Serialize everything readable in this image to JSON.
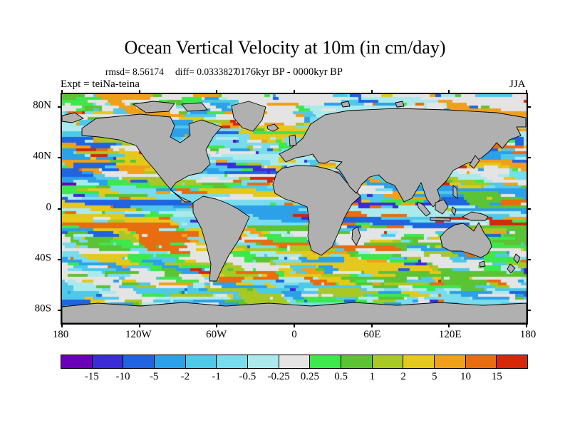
{
  "title": "Ocean Vertical Velocity at 10m (in cm/day)",
  "header": {
    "rmsd": "rmsd= 8.56174",
    "diff": "diff= 0.0333827",
    "time_range": "0176kyr BP - 0000kyr BP",
    "experiment": "Expt = teiNa-teina",
    "season": "JJA"
  },
  "chart_data": {
    "type": "heatmap",
    "title": "Ocean Vertical Velocity at 10m (in cm/day)",
    "subtitle": "rmsd= 8.56174 diff= 0.0333827",
    "description": "Global latitude-longitude map of ocean vertical velocity at 10m depth (cm/day), difference 0176kyr BP - 0000kyr BP for JJA season; continents masked in gray; mottled field of upwelling (warm colors) and downwelling (cool colors) bands over the oceans.",
    "x_ticks": [
      "180",
      "120W",
      "60W",
      "0",
      "60E",
      "120E",
      "180"
    ],
    "y_ticks": [
      "80N",
      "40N",
      "0",
      "40S",
      "80S"
    ],
    "y_tick_percents": [
      5.56,
      27.78,
      50,
      72.22,
      94.44
    ],
    "x_range_deg": [
      -180,
      180
    ],
    "y_range_deg": [
      -90,
      90
    ],
    "grid": false,
    "legend_position": "bottom-colorbar",
    "colorbar": {
      "tick_labels": [
        "-15",
        "-10",
        "-5",
        "-2",
        "-1",
        "-0.5",
        "-0.25",
        "0.25",
        "0.5",
        "1",
        "2",
        "5",
        "10",
        "15"
      ],
      "colors": [
        "#6a00b8",
        "#3c2cd8",
        "#2064e0",
        "#2ca0e8",
        "#50c8e8",
        "#78dcec",
        "#aaeaec",
        "#e4e4e4",
        "#3ce84c",
        "#5cc434",
        "#a8c824",
        "#e4c81c",
        "#f0a018",
        "#e86c10",
        "#d42808"
      ]
    },
    "land_color": "#b0b0b0",
    "coastline_color": "#000000",
    "background_color": "#ffffff"
  }
}
